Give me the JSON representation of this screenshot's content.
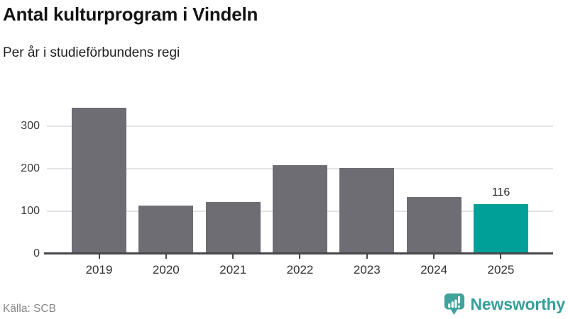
{
  "header": {
    "title": "Antal kulturprogram i Vindeln",
    "subtitle": "Per år i studieförbundens regi"
  },
  "chart_data": {
    "type": "bar",
    "title": "Antal kulturprogram i Vindeln",
    "subtitle": "Per år i studieförbundens regi",
    "categories": [
      "2019",
      "2020",
      "2021",
      "2022",
      "2023",
      "2024",
      "2025"
    ],
    "values": [
      343,
      113,
      121,
      209,
      202,
      134,
      116
    ],
    "data_labels": [
      "",
      "",
      "",
      "",
      "",
      "",
      "116"
    ],
    "xlabel": "",
    "ylabel": "",
    "ylim": [
      0,
      360
    ],
    "yticks": [
      0,
      100,
      200,
      300
    ],
    "grid": true,
    "legend": "none",
    "bar_color": "#6e6d73",
    "highlight_color": "#00a099",
    "highlight_index": 6,
    "grid_color": "#e4e4e4",
    "axis_color": "#47464b"
  },
  "footer": {
    "source": "Källa: SCB",
    "brand": "Newsworthy",
    "brand_color": "#369e99",
    "brand_icon": "newsworthy-speech-bubble-bar-chart"
  }
}
